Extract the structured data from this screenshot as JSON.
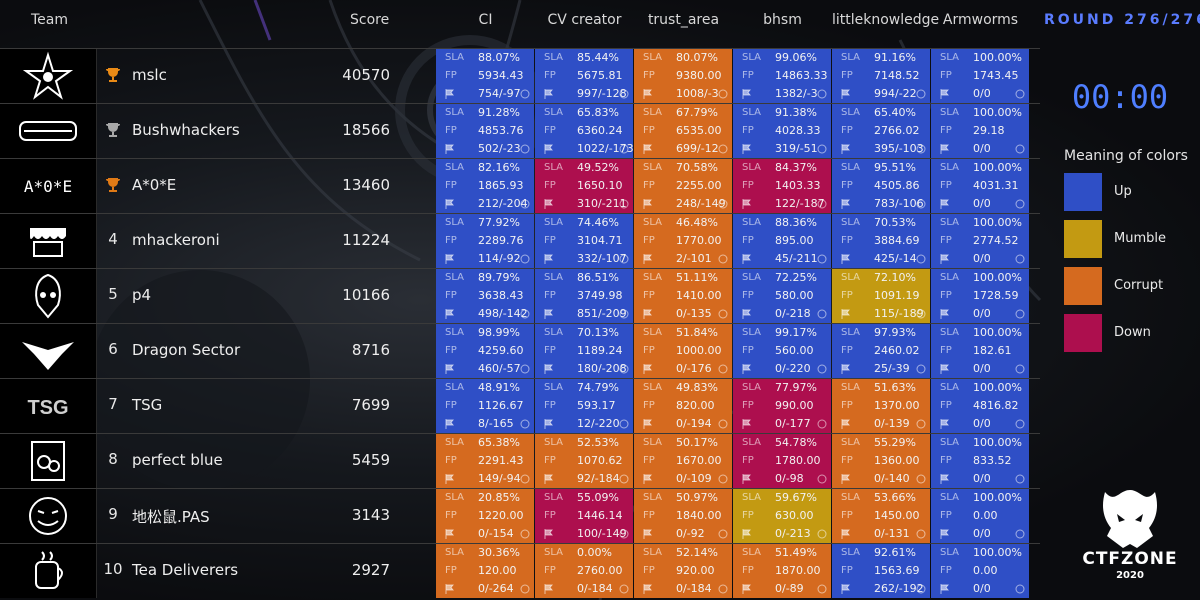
{
  "header": {
    "team_label": "Team",
    "score_label": "Score",
    "services": [
      "CI",
      "CV creator",
      "trust_area",
      "bhsm",
      "littleknowledge",
      "Armworms"
    ]
  },
  "round_label": "ROUND 276/276",
  "timer": "00:00",
  "legend": {
    "title": "Meaning of colors",
    "items": [
      {
        "label": "Up",
        "color": "#2f4fc6"
      },
      {
        "label": "Mumble",
        "color": "#c39a12"
      },
      {
        "label": "Corrupt",
        "color": "#d56a1f"
      },
      {
        "label": "Down",
        "color": "#ad0f4e"
      }
    ]
  },
  "cell_keys": {
    "sla": "SLA",
    "fp": "FP"
  },
  "brand": {
    "name": "CTFZONE",
    "year": "2020"
  },
  "teams": [
    {
      "rank": "1",
      "trophy": "gold",
      "logo": "star-logo",
      "name": "mslc",
      "score": "40570",
      "cells": [
        {
          "s": "up",
          "sla": "88.07%",
          "fp": "5934.43",
          "fl": "754/-97"
        },
        {
          "s": "up",
          "sla": "85.44%",
          "fp": "5675.81",
          "fl": "997/-128"
        },
        {
          "s": "corrupt",
          "sla": "80.07%",
          "fp": "9380.00",
          "fl": "1008/-3"
        },
        {
          "s": "up",
          "sla": "99.06%",
          "fp": "14863.33",
          "fl": "1382/-3"
        },
        {
          "s": "up",
          "sla": "91.16%",
          "fp": "7148.52",
          "fl": "994/-22"
        },
        {
          "s": "up",
          "sla": "100.00%",
          "fp": "1743.45",
          "fl": "0/0"
        }
      ]
    },
    {
      "rank": "2",
      "trophy": "silver",
      "logo": "bushwhackers-logo",
      "name": "Bushwhackers",
      "score": "18566",
      "cells": [
        {
          "s": "up",
          "sla": "91.28%",
          "fp": "4853.76",
          "fl": "502/-23"
        },
        {
          "s": "up",
          "sla": "65.83%",
          "fp": "6360.24",
          "fl": "1022/-173"
        },
        {
          "s": "corrupt",
          "sla": "67.79%",
          "fp": "6535.00",
          "fl": "699/-12"
        },
        {
          "s": "up",
          "sla": "91.38%",
          "fp": "4028.33",
          "fl": "319/-51"
        },
        {
          "s": "up",
          "sla": "65.40%",
          "fp": "2766.02",
          "fl": "395/-103"
        },
        {
          "s": "up",
          "sla": "100.00%",
          "fp": "29.18",
          "fl": "0/0"
        }
      ]
    },
    {
      "rank": "3",
      "trophy": "bronze",
      "logo": "aoe-logo",
      "logo_text": "A*0*E",
      "name": "A*0*E",
      "score": "13460",
      "cells": [
        {
          "s": "up",
          "sla": "82.16%",
          "fp": "1865.93",
          "fl": "212/-204"
        },
        {
          "s": "down",
          "sla": "49.52%",
          "fp": "1650.10",
          "fl": "310/-211"
        },
        {
          "s": "corrupt",
          "sla": "70.58%",
          "fp": "2255.00",
          "fl": "248/-149"
        },
        {
          "s": "down",
          "sla": "84.37%",
          "fp": "1403.33",
          "fl": "122/-187"
        },
        {
          "s": "up",
          "sla": "95.51%",
          "fp": "4505.86",
          "fl": "783/-106"
        },
        {
          "s": "up",
          "sla": "100.00%",
          "fp": "4031.31",
          "fl": "0/0"
        }
      ]
    },
    {
      "rank": "4",
      "trophy": "",
      "logo": "mhackeroni-logo",
      "name": "mhackeroni",
      "score": "11224",
      "cells": [
        {
          "s": "up",
          "sla": "77.92%",
          "fp": "2289.76",
          "fl": "114/-92"
        },
        {
          "s": "up",
          "sla": "74.46%",
          "fp": "3104.71",
          "fl": "332/-107"
        },
        {
          "s": "corrupt",
          "sla": "46.48%",
          "fp": "1770.00",
          "fl": "2/-101"
        },
        {
          "s": "up",
          "sla": "88.36%",
          "fp": "895.00",
          "fl": "45/-211"
        },
        {
          "s": "up",
          "sla": "70.53%",
          "fp": "3884.69",
          "fl": "425/-14"
        },
        {
          "s": "up",
          "sla": "100.00%",
          "fp": "2774.52",
          "fl": "0/0"
        }
      ]
    },
    {
      "rank": "5",
      "trophy": "",
      "logo": "p4-logo",
      "name": "p4",
      "score": "10166",
      "cells": [
        {
          "s": "up",
          "sla": "89.79%",
          "fp": "3638.43",
          "fl": "498/-142"
        },
        {
          "s": "up",
          "sla": "86.51%",
          "fp": "3749.98",
          "fl": "851/-209"
        },
        {
          "s": "corrupt",
          "sla": "51.11%",
          "fp": "1410.00",
          "fl": "0/-135"
        },
        {
          "s": "up",
          "sla": "72.25%",
          "fp": "580.00",
          "fl": "0/-218"
        },
        {
          "s": "mumble",
          "sla": "72.10%",
          "fp": "1091.19",
          "fl": "115/-189"
        },
        {
          "s": "up",
          "sla": "100.00%",
          "fp": "1728.59",
          "fl": "0/0"
        }
      ]
    },
    {
      "rank": "6",
      "trophy": "",
      "logo": "dragon-logo",
      "name": "Dragon Sector",
      "score": "8716",
      "cells": [
        {
          "s": "up",
          "sla": "98.99%",
          "fp": "4259.60",
          "fl": "460/-57"
        },
        {
          "s": "up",
          "sla": "70.13%",
          "fp": "1189.24",
          "fl": "180/-208"
        },
        {
          "s": "corrupt",
          "sla": "51.84%",
          "fp": "1000.00",
          "fl": "0/-176"
        },
        {
          "s": "up",
          "sla": "99.17%",
          "fp": "560.00",
          "fl": "0/-220"
        },
        {
          "s": "up",
          "sla": "97.93%",
          "fp": "2460.02",
          "fl": "25/-39"
        },
        {
          "s": "up",
          "sla": "100.00%",
          "fp": "182.61",
          "fl": "0/0"
        }
      ]
    },
    {
      "rank": "7",
      "trophy": "",
      "logo": "tsg-logo",
      "logo_text": "TSG",
      "name": "TSG",
      "score": "7699",
      "cells": [
        {
          "s": "up",
          "sla": "48.91%",
          "fp": "1126.67",
          "fl": "8/-165"
        },
        {
          "s": "up",
          "sla": "74.79%",
          "fp": "593.17",
          "fl": "12/-220"
        },
        {
          "s": "corrupt",
          "sla": "49.83%",
          "fp": "820.00",
          "fl": "0/-194"
        },
        {
          "s": "down",
          "sla": "77.97%",
          "fp": "990.00",
          "fl": "0/-177"
        },
        {
          "s": "corrupt",
          "sla": "51.63%",
          "fp": "1370.00",
          "fl": "0/-139"
        },
        {
          "s": "up",
          "sla": "100.00%",
          "fp": "4816.82",
          "fl": "0/0"
        }
      ]
    },
    {
      "rank": "8",
      "trophy": "",
      "logo": "perfect-blue-logo",
      "name": "perfect blue",
      "score": "5459",
      "cells": [
        {
          "s": "corrupt",
          "sla": "65.38%",
          "fp": "2291.43",
          "fl": "149/-94"
        },
        {
          "s": "corrupt",
          "sla": "52.53%",
          "fp": "1070.62",
          "fl": "92/-184"
        },
        {
          "s": "corrupt",
          "sla": "50.17%",
          "fp": "1670.00",
          "fl": "0/-109"
        },
        {
          "s": "down",
          "sla": "54.78%",
          "fp": "1780.00",
          "fl": "0/-98"
        },
        {
          "s": "corrupt",
          "sla": "55.29%",
          "fp": "1360.00",
          "fl": "0/-140"
        },
        {
          "s": "up",
          "sla": "100.00%",
          "fp": "833.52",
          "fl": "0/0"
        }
      ]
    },
    {
      "rank": "9",
      "trophy": "",
      "logo": "pas-logo",
      "name": "地松鼠.PAS",
      "score": "3143",
      "cells": [
        {
          "s": "corrupt",
          "sla": "20.85%",
          "fp": "1220.00",
          "fl": "0/-154"
        },
        {
          "s": "down",
          "sla": "55.09%",
          "fp": "1446.14",
          "fl": "100/-149"
        },
        {
          "s": "corrupt",
          "sla": "50.97%",
          "fp": "1840.00",
          "fl": "0/-92"
        },
        {
          "s": "mumble",
          "sla": "59.67%",
          "fp": "630.00",
          "fl": "0/-213"
        },
        {
          "s": "corrupt",
          "sla": "53.66%",
          "fp": "1450.00",
          "fl": "0/-131"
        },
        {
          "s": "up",
          "sla": "100.00%",
          "fp": "0.00",
          "fl": "0/0"
        }
      ]
    },
    {
      "rank": "10",
      "trophy": "",
      "logo": "tea-deliverers-logo",
      "name": "Tea Deliverers",
      "score": "2927",
      "cells": [
        {
          "s": "corrupt",
          "sla": "30.36%",
          "fp": "120.00",
          "fl": "0/-264"
        },
        {
          "s": "corrupt",
          "sla": "0.00%",
          "fp": "2760.00",
          "fl": "0/-184"
        },
        {
          "s": "corrupt",
          "sla": "52.14%",
          "fp": "920.00",
          "fl": "0/-184"
        },
        {
          "s": "corrupt",
          "sla": "51.49%",
          "fp": "1870.00",
          "fl": "0/-89"
        },
        {
          "s": "up",
          "sla": "92.61%",
          "fp": "1563.69",
          "fl": "262/-192"
        },
        {
          "s": "up",
          "sla": "100.00%",
          "fp": "0.00",
          "fl": "0/0"
        }
      ]
    }
  ]
}
